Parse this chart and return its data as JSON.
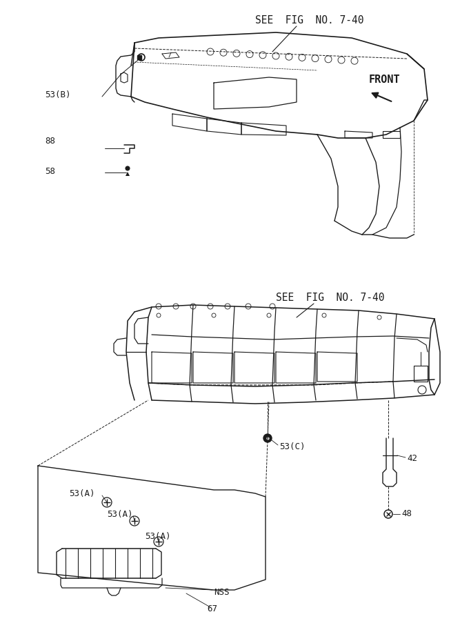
{
  "bg_color": "#ffffff",
  "line_color": "#1a1a1a",
  "fig_width": 6.67,
  "fig_height": 9.0,
  "dpi": 100,
  "top_see_fig": "SEE  FIG  NO. 7-40",
  "bot_see_fig": "SEE  FIG  NO. 7-40",
  "front_label": "FRONT",
  "font_family": "monospace",
  "font_size_label": 9,
  "font_size_title": 10.5
}
